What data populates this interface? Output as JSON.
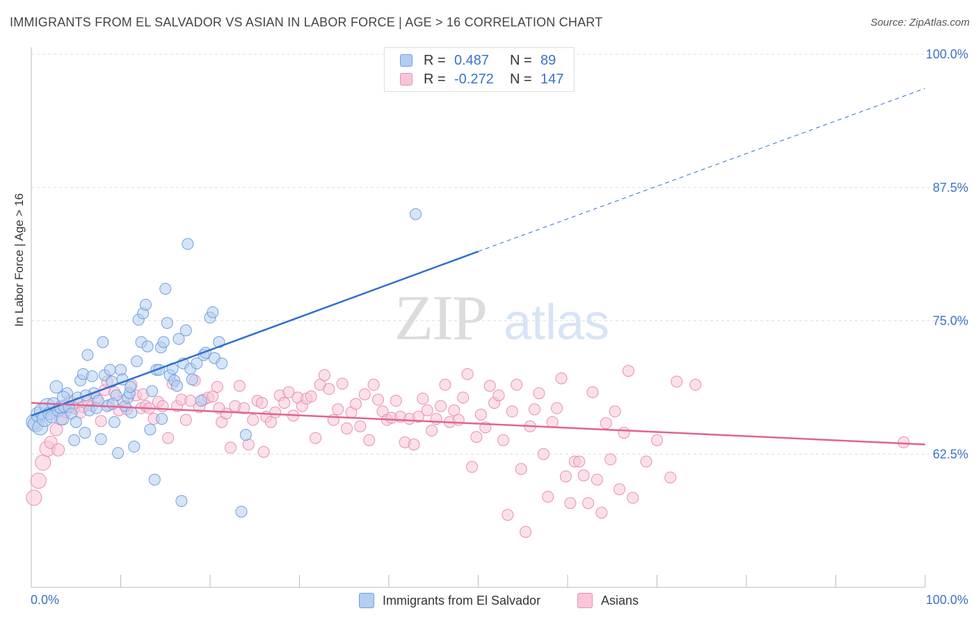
{
  "title": "IMMIGRANTS FROM EL SALVADOR VS ASIAN IN LABOR FORCE | AGE > 16 CORRELATION CHART",
  "source": "Source: ZipAtlas.com",
  "watermark": {
    "zip": "ZIP",
    "atlas": "atlas"
  },
  "stats": {
    "blue": {
      "r_label": "R =",
      "r_value": "0.487",
      "n_label": "N =",
      "n_value": "89"
    },
    "pink": {
      "r_label": "R =",
      "r_value": "-0.272",
      "n_label": "N =",
      "n_value": "147"
    }
  },
  "legend": {
    "blue": "Immigrants from El Salvador",
    "pink": "Asians"
  },
  "colors": {
    "blue": "#6fa0df",
    "blue_fill": "#b4cdf0",
    "blue_line": "#2f6fce",
    "pink": "#ea8db0",
    "pink_fill": "#f8c6d8",
    "pink_line": "#e0648f",
    "tick_label": "#3a72c8"
  },
  "chart_data": {
    "type": "scatter",
    "title": "IMMIGRANTS FROM EL SALVADOR VS ASIAN IN LABOR FORCE | AGE > 16 CORRELATION CHART",
    "xlabel": "",
    "ylabel": "In Labor Force | Age > 16",
    "xlim": [
      0,
      100
    ],
    "ylim": [
      50,
      100
    ],
    "x_tick_labels": [
      "0.0%",
      "100.0%"
    ],
    "y_ticks": [
      62.5,
      75.0,
      87.5,
      100.0
    ],
    "y_tick_labels": [
      "62.5%",
      "75.0%",
      "87.5%",
      "100.0%"
    ],
    "grid": true,
    "legend_position": "bottom-center",
    "series": [
      {
        "name": "Immigrants from El Salvador",
        "color": "#6fa0df",
        "points": [
          [
            0.3,
            65.5
          ],
          [
            0.5,
            65.3
          ],
          [
            0.8,
            66.2
          ],
          [
            1.0,
            65.0
          ],
          [
            1.2,
            66.5
          ],
          [
            1.5,
            65.8
          ],
          [
            1.8,
            67.0
          ],
          [
            2.0,
            66.3
          ],
          [
            2.3,
            66.0
          ],
          [
            2.5,
            67.2
          ],
          [
            2.8,
            68.8
          ],
          [
            3.0,
            66.6
          ],
          [
            3.3,
            66.9
          ],
          [
            3.5,
            65.8
          ],
          [
            3.7,
            67.0
          ],
          [
            4.0,
            68.2
          ],
          [
            4.2,
            66.9
          ],
          [
            4.5,
            66.3
          ],
          [
            4.8,
            63.8
          ],
          [
            5.0,
            65.5
          ],
          [
            5.2,
            67.8
          ],
          [
            5.5,
            69.4
          ],
          [
            5.8,
            70.0
          ],
          [
            6.0,
            64.5
          ],
          [
            6.3,
            71.8
          ],
          [
            6.5,
            66.6
          ],
          [
            6.8,
            69.8
          ],
          [
            7.0,
            68.2
          ],
          [
            7.3,
            66.8
          ],
          [
            7.5,
            67.5
          ],
          [
            7.8,
            63.9
          ],
          [
            8.0,
            73.0
          ],
          [
            8.2,
            69.9
          ],
          [
            8.5,
            67.0
          ],
          [
            8.8,
            70.4
          ],
          [
            9.0,
            69.3
          ],
          [
            9.3,
            65.5
          ],
          [
            9.5,
            68.0
          ],
          [
            9.7,
            62.6
          ],
          [
            10.0,
            70.4
          ],
          [
            10.2,
            69.5
          ],
          [
            10.5,
            67.0
          ],
          [
            10.8,
            67.8
          ],
          [
            11.0,
            68.2
          ],
          [
            11.2,
            66.4
          ],
          [
            11.5,
            63.2
          ],
          [
            11.8,
            71.2
          ],
          [
            12.0,
            75.1
          ],
          [
            12.3,
            73.0
          ],
          [
            12.5,
            75.7
          ],
          [
            12.8,
            76.5
          ],
          [
            13.0,
            72.6
          ],
          [
            13.3,
            64.8
          ],
          [
            13.5,
            68.4
          ],
          [
            13.8,
            60.1
          ],
          [
            14.0,
            70.4
          ],
          [
            14.3,
            70.4
          ],
          [
            14.5,
            72.5
          ],
          [
            14.8,
            73.0
          ],
          [
            15.0,
            78.0
          ],
          [
            15.2,
            74.8
          ],
          [
            15.5,
            69.9
          ],
          [
            15.8,
            70.5
          ],
          [
            16.0,
            69.4
          ],
          [
            16.3,
            68.9
          ],
          [
            16.5,
            73.3
          ],
          [
            16.8,
            58.1
          ],
          [
            17.0,
            71.0
          ],
          [
            17.3,
            74.1
          ],
          [
            17.5,
            82.2
          ],
          [
            17.8,
            70.5
          ],
          [
            18.0,
            69.5
          ],
          [
            18.5,
            71.0
          ],
          [
            19.0,
            67.5
          ],
          [
            19.3,
            71.8
          ],
          [
            19.5,
            72.0
          ],
          [
            20.0,
            75.3
          ],
          [
            20.3,
            75.8
          ],
          [
            20.5,
            71.5
          ],
          [
            21.0,
            73.0
          ],
          [
            21.3,
            71.0
          ],
          [
            23.5,
            57.1
          ],
          [
            24.0,
            64.3
          ],
          [
            43.0,
            85.0
          ],
          [
            3.6,
            67.8
          ],
          [
            6.1,
            68.0
          ],
          [
            9.1,
            67.2
          ],
          [
            11.1,
            68.8
          ],
          [
            14.6,
            65.8
          ]
        ],
        "trend": {
          "x": [
            0,
            50
          ],
          "y": [
            66.1,
            81.5
          ],
          "extended_to": [
            100,
            96.8
          ]
        }
      },
      {
        "name": "Asians",
        "color": "#ea8db0",
        "points": [
          [
            0.3,
            58.4
          ],
          [
            0.8,
            60.0
          ],
          [
            1.3,
            61.7
          ],
          [
            1.8,
            63.0
          ],
          [
            2.2,
            63.6
          ],
          [
            2.8,
            64.8
          ],
          [
            3.3,
            65.8
          ],
          [
            3.8,
            66.5
          ],
          [
            4.3,
            67.5
          ],
          [
            4.8,
            66.8
          ],
          [
            5.3,
            67.3
          ],
          [
            5.8,
            66.9
          ],
          [
            6.3,
            67.5
          ],
          [
            6.8,
            67.0
          ],
          [
            7.3,
            67.7
          ],
          [
            7.8,
            65.6
          ],
          [
            8.2,
            68.5
          ],
          [
            8.7,
            67.1
          ],
          [
            9.3,
            68.3
          ],
          [
            9.8,
            66.6
          ],
          [
            10.3,
            67.5
          ],
          [
            10.7,
            66.7
          ],
          [
            11.2,
            69.0
          ],
          [
            11.7,
            68.0
          ],
          [
            12.3,
            66.8
          ],
          [
            12.8,
            67.0
          ],
          [
            13.2,
            66.8
          ],
          [
            13.7,
            65.8
          ],
          [
            14.2,
            67.4
          ],
          [
            14.7,
            67.0
          ],
          [
            15.3,
            64.0
          ],
          [
            15.8,
            69.1
          ],
          [
            16.3,
            67.0
          ],
          [
            16.8,
            67.6
          ],
          [
            17.3,
            65.7
          ],
          [
            17.8,
            67.5
          ],
          [
            18.3,
            69.4
          ],
          [
            18.8,
            66.9
          ],
          [
            19.3,
            67.6
          ],
          [
            19.8,
            67.8
          ],
          [
            20.3,
            67.9
          ],
          [
            20.8,
            68.8
          ],
          [
            21.3,
            65.5
          ],
          [
            21.8,
            66.3
          ],
          [
            22.3,
            63.1
          ],
          [
            22.8,
            67.0
          ],
          [
            23.3,
            68.9
          ],
          [
            23.8,
            66.8
          ],
          [
            24.3,
            63.4
          ],
          [
            24.8,
            65.7
          ],
          [
            25.3,
            67.5
          ],
          [
            25.8,
            67.3
          ],
          [
            26.3,
            66.0
          ],
          [
            26.8,
            65.5
          ],
          [
            27.3,
            66.4
          ],
          [
            27.8,
            68.0
          ],
          [
            28.3,
            67.3
          ],
          [
            28.8,
            68.3
          ],
          [
            29.3,
            66.1
          ],
          [
            29.8,
            67.8
          ],
          [
            30.3,
            67.0
          ],
          [
            30.8,
            67.7
          ],
          [
            31.3,
            67.9
          ],
          [
            31.8,
            64.0
          ],
          [
            32.3,
            69.0
          ],
          [
            32.8,
            69.9
          ],
          [
            33.3,
            68.6
          ],
          [
            33.8,
            65.7
          ],
          [
            34.3,
            66.7
          ],
          [
            34.8,
            69.1
          ],
          [
            35.3,
            64.9
          ],
          [
            35.8,
            66.4
          ],
          [
            36.3,
            67.2
          ],
          [
            36.8,
            65.1
          ],
          [
            37.3,
            68.1
          ],
          [
            37.8,
            63.8
          ],
          [
            38.3,
            69.0
          ],
          [
            38.8,
            67.6
          ],
          [
            39.3,
            66.5
          ],
          [
            39.8,
            65.7
          ],
          [
            40.3,
            65.9
          ],
          [
            40.8,
            67.5
          ],
          [
            41.3,
            66.0
          ],
          [
            41.8,
            63.6
          ],
          [
            42.3,
            65.8
          ],
          [
            42.8,
            63.4
          ],
          [
            43.3,
            66.0
          ],
          [
            43.8,
            67.7
          ],
          [
            44.3,
            66.6
          ],
          [
            44.8,
            64.7
          ],
          [
            45.3,
            65.8
          ],
          [
            45.8,
            67.0
          ],
          [
            46.3,
            69.0
          ],
          [
            46.8,
            65.5
          ],
          [
            47.3,
            66.6
          ],
          [
            47.8,
            65.7
          ],
          [
            48.3,
            67.8
          ],
          [
            48.8,
            70.0
          ],
          [
            49.3,
            61.3
          ],
          [
            49.8,
            64.1
          ],
          [
            50.3,
            66.2
          ],
          [
            50.8,
            65.0
          ],
          [
            51.3,
            68.9
          ],
          [
            51.8,
            67.3
          ],
          [
            52.3,
            68.0
          ],
          [
            52.8,
            63.8
          ],
          [
            53.3,
            56.8
          ],
          [
            53.8,
            66.5
          ],
          [
            54.3,
            69.0
          ],
          [
            54.8,
            61.1
          ],
          [
            55.3,
            55.2
          ],
          [
            55.8,
            65.1
          ],
          [
            56.3,
            66.7
          ],
          [
            56.8,
            68.2
          ],
          [
            57.3,
            62.5
          ],
          [
            57.8,
            58.5
          ],
          [
            58.3,
            65.5
          ],
          [
            58.8,
            66.8
          ],
          [
            59.3,
            69.6
          ],
          [
            59.8,
            60.4
          ],
          [
            60.3,
            57.9
          ],
          [
            60.8,
            61.8
          ],
          [
            61.3,
            61.8
          ],
          [
            61.8,
            60.5
          ],
          [
            62.3,
            57.9
          ],
          [
            62.8,
            68.3
          ],
          [
            63.3,
            60.1
          ],
          [
            63.8,
            57.0
          ],
          [
            64.3,
            65.4
          ],
          [
            64.8,
            62.0
          ],
          [
            65.3,
            66.5
          ],
          [
            65.8,
            59.2
          ],
          [
            66.3,
            64.5
          ],
          [
            66.8,
            70.3
          ],
          [
            67.3,
            58.4
          ],
          [
            68.8,
            61.8
          ],
          [
            70.0,
            63.8
          ],
          [
            71.5,
            60.3
          ],
          [
            72.2,
            69.3
          ],
          [
            74.3,
            69.0
          ],
          [
            3.0,
            62.9
          ],
          [
            5.5,
            66.4
          ],
          [
            8.5,
            69.3
          ],
          [
            12.5,
            68.1
          ],
          [
            21.0,
            66.8
          ],
          [
            26.0,
            62.7
          ],
          [
            97.6,
            63.6
          ]
        ],
        "trend": {
          "x": [
            0,
            100
          ],
          "y": [
            67.3,
            63.4
          ]
        }
      }
    ]
  }
}
